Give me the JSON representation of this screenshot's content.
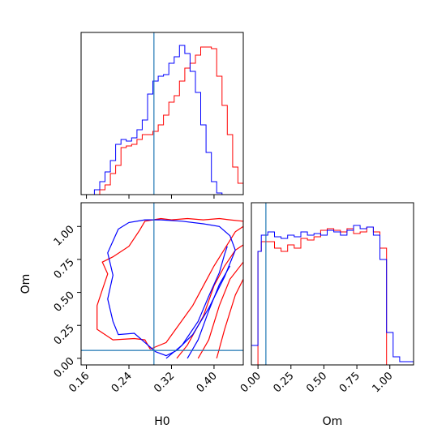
{
  "chart_data": [
    {
      "type": "histogram",
      "panel": "top-left",
      "x_param": "H0",
      "xlim": [
        0.15,
        0.455
      ],
      "truth": 0.287,
      "yticks": "none",
      "bin_edges": [
        0.155,
        0.165,
        0.175,
        0.185,
        0.195,
        0.205,
        0.215,
        0.225,
        0.235,
        0.245,
        0.255,
        0.265,
        0.275,
        0.285,
        0.295,
        0.305,
        0.315,
        0.325,
        0.335,
        0.345,
        0.355,
        0.365,
        0.375,
        0.385,
        0.395,
        0.405,
        0.415,
        0.425,
        0.435,
        0.445,
        0.455
      ],
      "series": [
        {
          "color": "#ff0000",
          "values": [
            0,
            0,
            0,
            0.03,
            0.06,
            0.13,
            0.18,
            0.29,
            0.3,
            0.31,
            0.34,
            0.37,
            0.37,
            0.39,
            0.43,
            0.49,
            0.57,
            0.61,
            0.7,
            0.78,
            0.81,
            0.86,
            0.91,
            0.91,
            0.9,
            0.73,
            0.55,
            0.37,
            0.17,
            0.07
          ]
        },
        {
          "color": "#0000ff",
          "values": [
            0,
            0,
            0.03,
            0.08,
            0.14,
            0.21,
            0.31,
            0.34,
            0.33,
            0.35,
            0.4,
            0.46,
            0.62,
            0.7,
            0.73,
            0.74,
            0.81,
            0.85,
            0.92,
            0.87,
            0.76,
            0.63,
            0.43,
            0.26,
            0.08,
            0.01,
            0,
            0,
            0,
            0
          ]
        }
      ]
    },
    {
      "type": "contour",
      "panel": "bottom-left",
      "x_param": "H0",
      "y_param": "Om",
      "xlabel": "H0",
      "ylabel": "Om",
      "xlim": [
        0.15,
        0.455
      ],
      "ylim": [
        -0.05,
        1.18
      ],
      "xticks": [
        "0.16",
        "0.24",
        "0.32",
        "0.40"
      ],
      "yticks": [
        "0.00",
        "0.25",
        "0.50",
        "0.75",
        "1.00"
      ],
      "truth": {
        "H0": 0.287,
        "Om": 0.06
      },
      "series": [
        {
          "color": "#ff0000",
          "levels": [
            {
              "x": [
                0.28,
                0.27,
                0.25,
                0.21,
                0.18,
                0.18,
                0.19,
                0.2,
                0.19,
                0.21,
                0.24,
                0.26,
                0.27,
                0.3,
                0.32,
                0.35,
                0.38,
                0.41,
                0.43,
                0.455,
                0.455,
                0.44,
                0.4,
                0.36,
                0.31,
                0.28
              ],
              "y": [
                0.07,
                0.14,
                0.15,
                0.14,
                0.22,
                0.4,
                0.52,
                0.64,
                0.73,
                0.77,
                0.85,
                0.97,
                1.04,
                1.06,
                1.05,
                1.06,
                1.05,
                1.06,
                1.05,
                1.04,
                1.0,
                0.96,
                0.7,
                0.4,
                0.12,
                0.07
              ]
            },
            {
              "x": [
                0.33,
                0.35,
                0.38,
                0.4,
                0.42,
                0.44,
                0.455
              ],
              "y": [
                0.0,
                0.1,
                0.32,
                0.55,
                0.7,
                0.82,
                0.86
              ]
            },
            {
              "x": [
                0.37,
                0.39,
                0.41,
                0.43,
                0.455
              ],
              "y": [
                0.0,
                0.14,
                0.4,
                0.6,
                0.73
              ]
            },
            {
              "x": [
                0.405,
                0.42,
                0.44,
                0.455
              ],
              "y": [
                0.0,
                0.22,
                0.48,
                0.6
              ]
            }
          ]
        },
        {
          "color": "#0000ff",
          "levels": [
            {
              "x": [
                0.29,
                0.25,
                0.22,
                0.21,
                0.2,
                0.21,
                0.2,
                0.22,
                0.24,
                0.27,
                0.3,
                0.34,
                0.38,
                0.41,
                0.43,
                0.44,
                0.42,
                0.39,
                0.36,
                0.33,
                0.31,
                0.29
              ],
              "y": [
                0.05,
                0.19,
                0.18,
                0.28,
                0.45,
                0.63,
                0.8,
                0.98,
                1.03,
                1.05,
                1.05,
                1.04,
                1.02,
                1.0,
                0.93,
                0.82,
                0.62,
                0.38,
                0.18,
                0.06,
                0.02,
                0.05
              ]
            },
            {
              "x": [
                0.31,
                0.34,
                0.37,
                0.39,
                0.41,
                0.42,
                0.425
              ],
              "y": [
                0.0,
                0.1,
                0.28,
                0.47,
                0.65,
                0.79,
                0.85
              ]
            },
            {
              "x": [
                0.35,
                0.37,
                0.39,
                0.41,
                0.43
              ],
              "y": [
                0.0,
                0.14,
                0.36,
                0.56,
                0.7
              ]
            }
          ]
        }
      ]
    },
    {
      "type": "histogram",
      "panel": "bottom-right",
      "x_param": "Om",
      "xlabel": "Om",
      "xlim": [
        -0.05,
        1.18
      ],
      "xticks": [
        "0.00",
        "0.25",
        "0.50",
        "0.75",
        "1.00"
      ],
      "truth": 0.06,
      "bin_edges": [
        -0.05,
        0.0,
        0.025,
        0.075,
        0.125,
        0.175,
        0.225,
        0.275,
        0.325,
        0.375,
        0.425,
        0.475,
        0.525,
        0.575,
        0.625,
        0.675,
        0.725,
        0.775,
        0.825,
        0.875,
        0.925,
        0.975,
        1.025,
        1.075,
        1.18
      ],
      "series": [
        {
          "color": "#ff0000",
          "values": [
            0,
            0.7,
            0.76,
            0.76,
            0.72,
            0.7,
            0.74,
            0.72,
            0.78,
            0.77,
            0.79,
            0.83,
            0.84,
            0.83,
            0.82,
            0.84,
            0.81,
            0.82,
            0.85,
            0.82,
            0.72,
            0,
            0,
            0
          ]
        },
        {
          "color": "#0000ff",
          "values": [
            0.12,
            0.7,
            0.8,
            0.82,
            0.79,
            0.78,
            0.8,
            0.79,
            0.82,
            0.8,
            0.81,
            0.8,
            0.83,
            0.82,
            0.8,
            0.83,
            0.86,
            0.84,
            0.85,
            0.8,
            0.65,
            0.2,
            0.05,
            0.02
          ]
        }
      ]
    }
  ],
  "truth_color": "#1f77b4"
}
